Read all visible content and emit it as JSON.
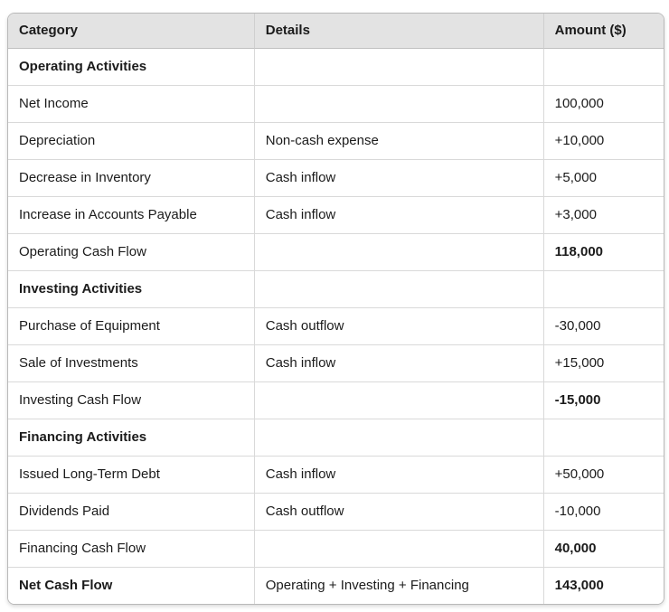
{
  "table": {
    "columns": [
      "Category",
      "Details",
      "Amount ($)"
    ],
    "rows": [
      {
        "category": "Operating Activities",
        "details": "",
        "amount": "",
        "bold_category": true,
        "bold_amount": false
      },
      {
        "category": "Net Income",
        "details": "",
        "amount": "100,000",
        "bold_category": false,
        "bold_amount": false
      },
      {
        "category": "Depreciation",
        "details": "Non-cash expense",
        "amount": "+10,000",
        "bold_category": false,
        "bold_amount": false
      },
      {
        "category": "Decrease in Inventory",
        "details": "Cash inflow",
        "amount": "+5,000",
        "bold_category": false,
        "bold_amount": false
      },
      {
        "category": "Increase in Accounts Payable",
        "details": "Cash inflow",
        "amount": "+3,000",
        "bold_category": false,
        "bold_amount": false
      },
      {
        "category": "Operating Cash Flow",
        "details": "",
        "amount": "118,000",
        "bold_category": false,
        "bold_amount": true
      },
      {
        "category": "Investing Activities",
        "details": "",
        "amount": "",
        "bold_category": true,
        "bold_amount": false
      },
      {
        "category": "Purchase of Equipment",
        "details": "Cash outflow",
        "amount": "-30,000",
        "bold_category": false,
        "bold_amount": false
      },
      {
        "category": "Sale of Investments",
        "details": "Cash inflow",
        "amount": "+15,000",
        "bold_category": false,
        "bold_amount": false
      },
      {
        "category": "Investing Cash Flow",
        "details": "",
        "amount": "-15,000",
        "bold_category": false,
        "bold_amount": true
      },
      {
        "category": "Financing Activities",
        "details": "",
        "amount": "",
        "bold_category": true,
        "bold_amount": false
      },
      {
        "category": "Issued Long-Term Debt",
        "details": "Cash inflow",
        "amount": "+50,000",
        "bold_category": false,
        "bold_amount": false
      },
      {
        "category": "Dividends Paid",
        "details": "Cash outflow",
        "amount": "-10,000",
        "bold_category": false,
        "bold_amount": false
      },
      {
        "category": "Financing Cash Flow",
        "details": "",
        "amount": "40,000",
        "bold_category": false,
        "bold_amount": true
      },
      {
        "category": "Net Cash Flow",
        "details": "Operating + Investing + Financing",
        "amount": "143,000",
        "bold_category": true,
        "bold_amount": true
      }
    ],
    "colors": {
      "header_background": "#e3e3e3",
      "outer_border": "#b9b9b9",
      "inner_border": "#d9d9d9",
      "text": "#1b1b1b"
    }
  }
}
